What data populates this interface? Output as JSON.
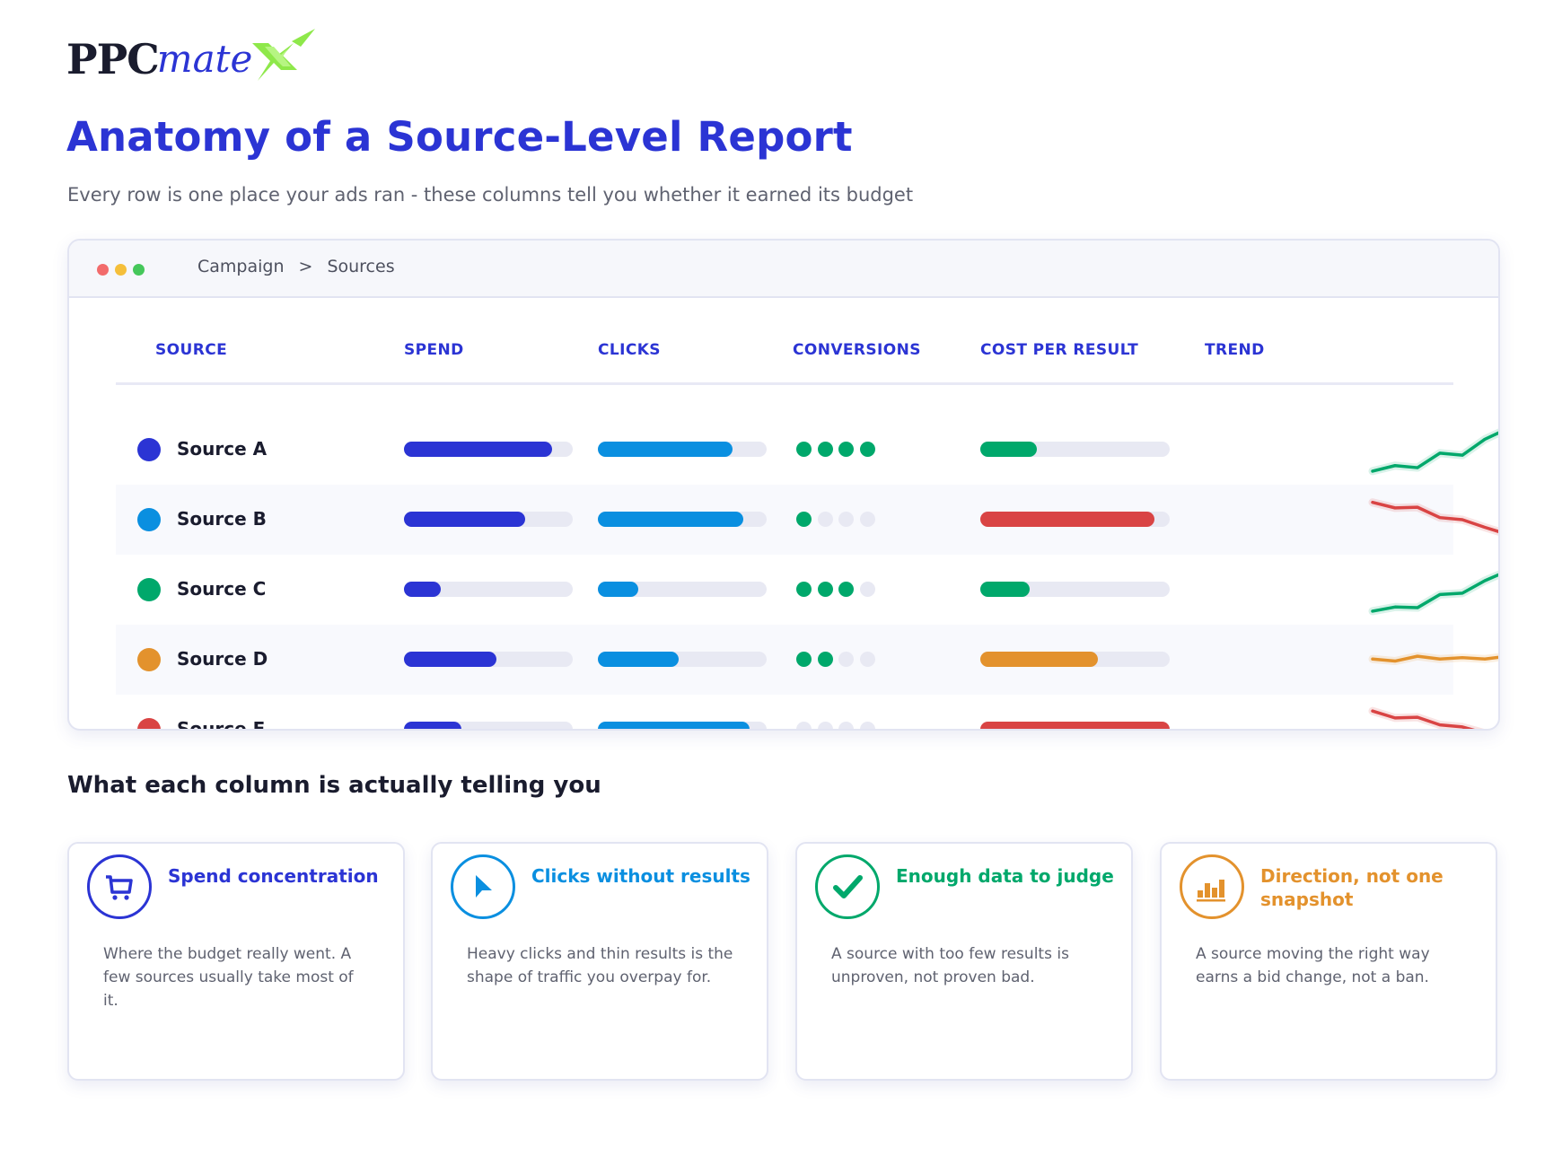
{
  "logo": {
    "part1": "PPC",
    "part2": "mate",
    "mark": "X"
  },
  "page": {
    "title": "Anatomy of a Source-Level Report",
    "subtitle": "Every row is one place your ads ran - these columns tell you whether it earned its budget"
  },
  "window": {
    "dots": [
      "#f26b6b",
      "#f5bf3a",
      "#45c75a"
    ],
    "breadcrumb": {
      "parent": "Campaign",
      "separator": ">",
      "current": "Sources"
    }
  },
  "table": {
    "columns": [
      "SOURCE",
      "SPEND",
      "CLICKS",
      "CONVERSIONS",
      "COST PER RESULT",
      "TREND"
    ],
    "rows": [
      {
        "name": "Source A",
        "color": "#2b34d4",
        "spend": 0.88,
        "clicks": 0.8,
        "conversions": 4,
        "cpr": 0.3,
        "cpr_color": "#00a86b",
        "trend": "up",
        "trend_color": "#00a86b",
        "trend_values": [
          4,
          12,
          9,
          30,
          27,
          50,
          65
        ]
      },
      {
        "name": "Source B",
        "color": "#0a8fe0",
        "spend": 0.72,
        "clicks": 0.86,
        "conversions": 1,
        "cpr": 0.92,
        "cpr_color": "#d94444",
        "trend": "down",
        "trend_color": "#d94444",
        "trend_values": [
          60,
          52,
          53,
          38,
          35,
          24,
          14
        ]
      },
      {
        "name": "Source C",
        "color": "#00a86b",
        "spend": 0.22,
        "clicks": 0.24,
        "conversions": 3,
        "cpr": 0.26,
        "cpr_color": "#00a86b",
        "trend": "up",
        "trend_color": "#00a86b",
        "trend_values": [
          4,
          10,
          9,
          28,
          30,
          48,
          62
        ]
      },
      {
        "name": "Source D",
        "color": "#e3922d",
        "spend": 0.55,
        "clicks": 0.48,
        "conversions": 2,
        "cpr": 0.62,
        "cpr_color": "#e3922d",
        "trend": "flat",
        "trend_color": "#e3922d",
        "trend_values": [
          36,
          33,
          40,
          36,
          38,
          36,
          40
        ]
      },
      {
        "name": "Source E",
        "color": "#d94444",
        "spend": 0.34,
        "clicks": 0.9,
        "conversions": 0,
        "cpr": 1.0,
        "cpr_color": "#d94444",
        "trend": "down",
        "trend_color": "#d94444",
        "trend_values": [
          62,
          52,
          53,
          42,
          39,
          30,
          23
        ]
      }
    ],
    "spend_color": "#2b34d4",
    "clicks_color": "#0a8fe0",
    "conv_on_color": "#00a86b",
    "conv_off_color": "#e8e9f3"
  },
  "section": {
    "title": "What each column is actually telling you"
  },
  "cards": [
    {
      "title": "Spend concentration",
      "body": "Where the budget really went. A few sources usually take most of it.",
      "color": "#2b34d4",
      "icon": "cart-icon"
    },
    {
      "title": "Clicks without results",
      "body": "Heavy clicks and thin results is the shape of traffic you overpay for.",
      "color": "#0a8fe0",
      "icon": "cursor-icon"
    },
    {
      "title": "Enough data to judge",
      "body": "A source with too few results is unproven, not proven bad.",
      "color": "#00a86b",
      "icon": "checkmark-icon"
    },
    {
      "title": "Direction, not one snapshot",
      "body": "A source moving the right way earns a bid change, not a ban.",
      "color": "#e3922d",
      "icon": "bar-chart-icon"
    }
  ]
}
